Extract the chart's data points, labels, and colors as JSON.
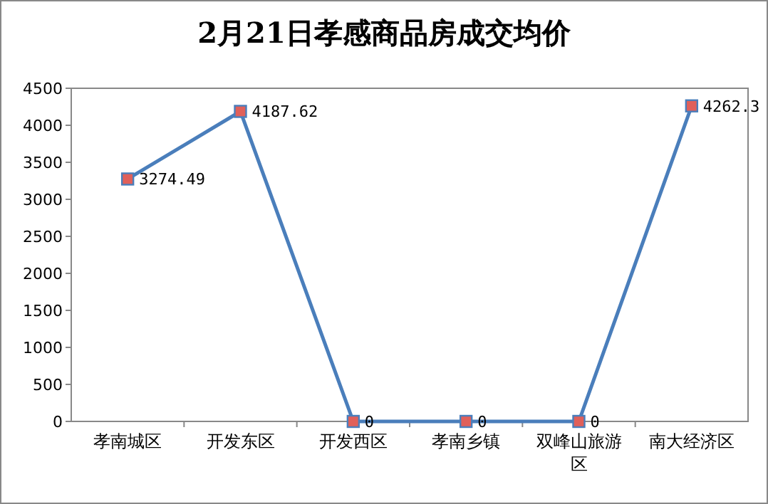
{
  "chart_data": {
    "type": "line",
    "title": "2月21日孝感商品房成交均价",
    "categories": [
      "孝南城区",
      "开发东区",
      "开发西区",
      "孝南乡镇",
      "双峰山旅游区",
      "南大经济区"
    ],
    "series": [
      {
        "color": "#4a7ebb",
        "values": [
          3274.49,
          4187.62,
          0,
          0,
          0,
          4262.3
        ]
      }
    ],
    "ylim": [
      0,
      4500
    ],
    "yticks": [
      0,
      500,
      1000,
      1500,
      2000,
      2500,
      3000,
      3500,
      4000,
      4500
    ],
    "marker": "square",
    "data_labels": true
  }
}
